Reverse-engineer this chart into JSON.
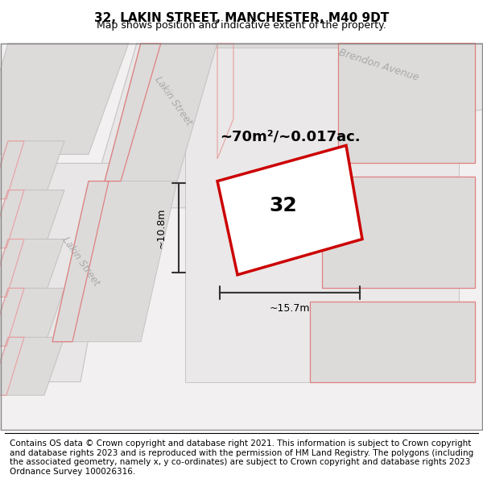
{
  "title": "32, LAKIN STREET, MANCHESTER, M40 9DT",
  "subtitle": "Map shows position and indicative extent of the property.",
  "footer": "Contains OS data © Crown copyright and database right 2021. This information is subject to Crown copyright and database rights 2023 and is reproduced with the permission of HM Land Registry. The polygons (including the associated geometry, namely x, y co-ordinates) are subject to Crown copyright and database rights 2023 Ordnance Survey 100026316.",
  "map_bg": "#f0eeee",
  "road_color": "#e8e8e8",
  "road_border_color": "#cccccc",
  "block_fill": "#e2dede",
  "block_border": "#bbbbbb",
  "red_line_color": "#dd0000",
  "pink_fill": "#f5c0c0",
  "pink_line": "#e88888",
  "street_label_color": "#aaaaaa",
  "dimension_color": "#333333",
  "property_label": "32",
  "area_label": "~70m²/~0.017ac.",
  "dim_width": "~15.7m",
  "dim_height": "~10.8m",
  "street1": "Lakin Street",
  "street2": "Lakin Street",
  "street3": "Brendon Avenue",
  "title_fontsize": 11,
  "subtitle_fontsize": 9,
  "footer_fontsize": 7.5
}
